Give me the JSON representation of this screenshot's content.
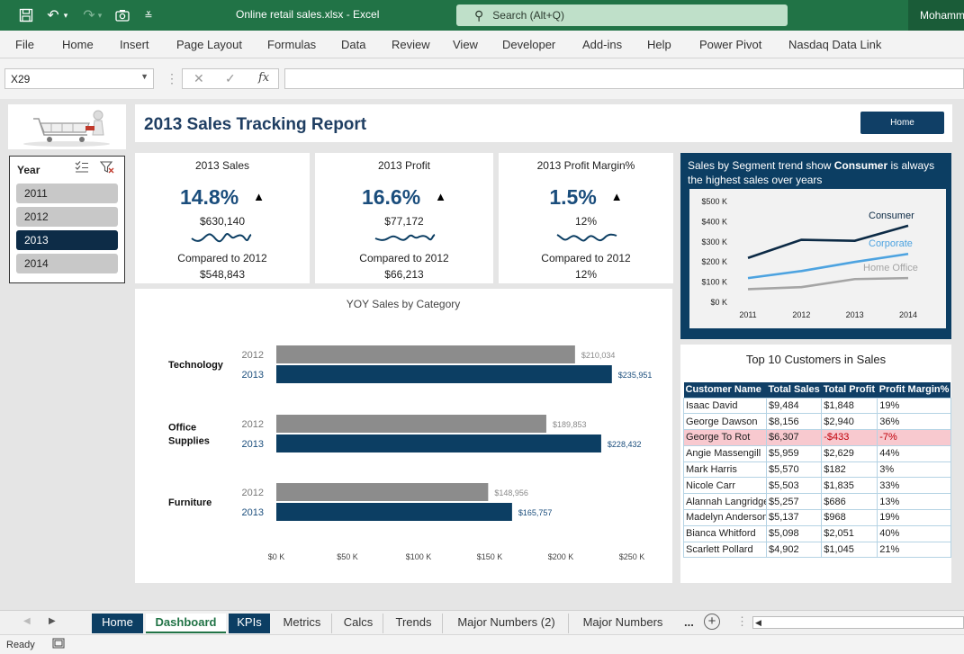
{
  "titlebar": {
    "doc_title": "Online retail sales.xlsx  -  Excel",
    "search_placeholder": "Search (Alt+Q)",
    "user": "Mohamm"
  },
  "ribbon": {
    "tabs": [
      "File",
      "Home",
      "Insert",
      "Page Layout",
      "Formulas",
      "Data",
      "Review",
      "View",
      "Developer",
      "Add-ins",
      "Help",
      "Power Pivot",
      "Nasdaq Data Link"
    ]
  },
  "formula_bar": {
    "name_box": "X29",
    "formula": ""
  },
  "report": {
    "title": "2013 Sales Tracking Report",
    "home_button": "Home"
  },
  "slicer": {
    "header": "Year",
    "items": [
      "2011",
      "2012",
      "2013",
      "2014"
    ],
    "selected": "2013"
  },
  "kpis": [
    {
      "title": "2013 Sales",
      "pct": "14.8%",
      "value": "$630,140",
      "compare_label": "Compared to 2012",
      "prev": "$548,843"
    },
    {
      "title": "2013 Profit",
      "pct": "16.6%",
      "value": "$77,172",
      "compare_label": "Compared to 2012",
      "prev": "$66,213"
    },
    {
      "title": "2013 Profit Margin%",
      "pct": "1.5%",
      "value": "12%",
      "compare_label": "Compared to 2012",
      "prev": "12%"
    }
  ],
  "kpi_arrow": "▲",
  "chart_data": [
    {
      "type": "bar",
      "orientation": "horizontal",
      "title": "YOY Sales by Category",
      "categories": [
        "Technology",
        "Office Supplies",
        "Furniture"
      ],
      "series": [
        {
          "name": "2012",
          "values": [
            210034,
            189853,
            148956
          ],
          "labels": [
            "$210,034",
            "$189,853",
            "$148,956"
          ],
          "color": "#8c8c8c"
        },
        {
          "name": "2013",
          "values": [
            235951,
            228432,
            165757
          ],
          "labels": [
            "$235,951",
            "$228,432",
            "$165,757"
          ],
          "color": "#0c3e63"
        }
      ],
      "xlim": [
        0,
        250000
      ],
      "xticks": [
        0,
        50000,
        100000,
        150000,
        200000,
        250000
      ],
      "xtick_labels": [
        "$0 K",
        "$50 K",
        "$100 K",
        "$150 K",
        "$200 K",
        "$250 K"
      ],
      "grid": false
    },
    {
      "type": "line",
      "note_prefix": "Sales by Segment trend show ",
      "note_bold": "Consumer",
      "note_suffix": " is always the highest sales over years",
      "x": [
        "2011",
        "2012",
        "2013",
        "2014"
      ],
      "series": [
        {
          "name": "Consumer",
          "values": [
            220000,
            310000,
            305000,
            380000
          ],
          "color": "#0c2a45"
        },
        {
          "name": "Corporate",
          "values": [
            120000,
            155000,
            200000,
            240000
          ],
          "color": "#4da3e0"
        },
        {
          "name": "Home Office",
          "values": [
            65000,
            75000,
            115000,
            120000
          ],
          "color": "#a5a5a5"
        }
      ],
      "ylim": [
        0,
        500000
      ],
      "yticks": [
        0,
        100000,
        200000,
        300000,
        400000,
        500000
      ],
      "ytick_labels": [
        "$0 K",
        "$100 K",
        "$200 K",
        "$300 K",
        "$400 K",
        "$500 K"
      ],
      "legend": "inline-labels"
    }
  ],
  "top_customers": {
    "title": "Top 10 Customers in Sales",
    "headers": [
      "Customer Name",
      "Total Sales",
      "Total Profit",
      "Profit Margin%"
    ],
    "rows": [
      [
        "Isaac David",
        "$9,484",
        "$1,848",
        "19%"
      ],
      [
        "George Dawson",
        "$8,156",
        "$2,940",
        "36%"
      ],
      [
        "George To Rot",
        "$6,307",
        "-$433",
        "-7%"
      ],
      [
        "Angie Massengill",
        "$5,959",
        "$2,629",
        "44%"
      ],
      [
        "Mark Harris",
        "$5,570",
        "$182",
        "3%"
      ],
      [
        "Nicole Carr",
        "$5,503",
        "$1,835",
        "33%"
      ],
      [
        "Alannah Langridge",
        "$5,257",
        "$686",
        "13%"
      ],
      [
        "Madelyn Anderson",
        "$5,137",
        "$968",
        "19%"
      ],
      [
        "Bianca Whitford",
        "$5,098",
        "$2,051",
        "40%"
      ],
      [
        "Scarlett Pollard",
        "$4,902",
        "$1,045",
        "21%"
      ]
    ],
    "negative_row": 2
  },
  "sheet_tabs": {
    "tabs": [
      "Home",
      "Dashboard",
      "KPIs",
      "Metrics",
      "Calcs",
      "Trends",
      "Major Numbers (2)",
      "Major Numbers"
    ],
    "more": "...",
    "active": "Dashboard"
  },
  "status": {
    "text": "Ready"
  },
  "colors": {
    "excel_green": "#217346",
    "navy": "#0c3e63",
    "grey_bar": "#8c8c8c"
  },
  "icons": {
    "save": "save-icon",
    "undo": "undo-icon",
    "redo": "redo-icon",
    "camera": "camera-icon",
    "customize": "chevron-down-icon",
    "search": "search-icon",
    "multiselect": "multiselect-icon",
    "clear_filter": "clear-filter-icon",
    "add_sheet": "add-sheet-icon"
  }
}
